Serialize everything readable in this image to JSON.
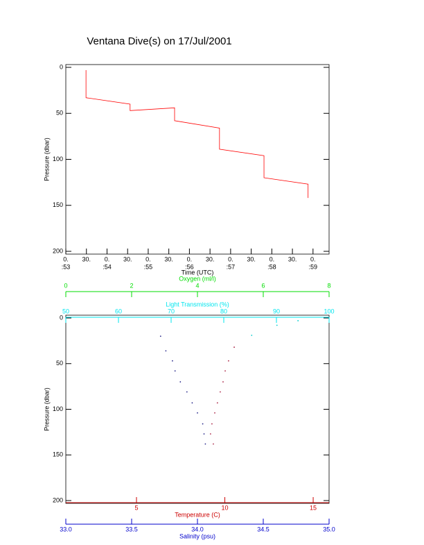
{
  "chart_data": [
    {
      "type": "line",
      "title": "Ventana Dive(s) on 17/Jul/2001",
      "x_label": "Time (UTC)",
      "y_label": "Pressure (dbar)",
      "xlim": [
        53,
        59.39
      ],
      "ylim": [
        0,
        200
      ],
      "y_inverted": true,
      "xticks": [
        {
          "value": 53,
          "label": [
            "0.",
            ":53"
          ]
        },
        {
          "value": 53.5,
          "label": "30."
        },
        {
          "value": 54,
          "label": [
            "0.",
            ":54"
          ]
        },
        {
          "value": 54.5,
          "label": "30."
        },
        {
          "value": 55,
          "label": [
            "0.",
            ":55"
          ]
        },
        {
          "value": 55.5,
          "label": "30."
        },
        {
          "value": 56,
          "label": [
            "0.",
            ":56"
          ]
        },
        {
          "value": 56.5,
          "label": "30."
        },
        {
          "value": 57,
          "label": [
            "0.",
            ":57"
          ]
        },
        {
          "value": 57.5,
          "label": "30."
        },
        {
          "value": 58,
          "label": [
            "0.",
            ":58"
          ]
        },
        {
          "value": 58.5,
          "label": "30."
        },
        {
          "value": 59,
          "label": [
            "0.",
            ":59"
          ]
        }
      ],
      "yticks": [
        0,
        50,
        100,
        150,
        200
      ],
      "series": [
        {
          "color": "#ff0000",
          "x": [
            53.49,
            53.49,
            54.56,
            54.56,
            55.64,
            55.64,
            56.73,
            56.73,
            57.81,
            57.81,
            58.88,
            58.88
          ],
          "values": [
            3,
            33,
            40,
            47,
            44,
            58,
            66,
            89,
            96,
            120,
            127,
            142
          ]
        }
      ]
    },
    {
      "type": "scatter",
      "y_label": "Pressure (dbar)",
      "ylim": [
        0,
        200
      ],
      "y_inverted": true,
      "yticks": [
        0,
        50,
        100,
        150,
        200
      ],
      "x_axes": [
        {
          "label": "Oxygen (ml/l)",
          "color": "#00dd00",
          "xlim": [
            0,
            8
          ],
          "xticks": [
            0,
            2,
            4,
            6,
            8
          ],
          "series": []
        },
        {
          "label": "Light Transmission (%)",
          "color": "#00e5ee",
          "xlim": [
            50,
            100
          ],
          "xticks": [
            50,
            60,
            70,
            80,
            90,
            100
          ],
          "series": [
            {
              "color": "#00cccc",
              "x": [
                85.3,
                90.1,
                94.1
              ],
              "values": [
                19,
                8,
                3
              ]
            }
          ]
        },
        {
          "label": "Temperature (C)",
          "color": "#cc0000",
          "xlim": [
            1,
            15.9
          ],
          "xticks": [
            5,
            10,
            15
          ],
          "series": [
            {
              "color": "#aa2244",
              "x": [
                10.53,
                10.21,
                10.02,
                9.9,
                9.74,
                9.58,
                9.43,
                9.27,
                9.19,
                9.35
              ],
              "values": [
                32,
                47,
                58,
                70,
                81,
                93,
                104,
                116,
                127,
                138
              ]
            }
          ]
        },
        {
          "label": "Salinity (psu)",
          "color": "#0000cc",
          "xlim": [
            33,
            35
          ],
          "xticks": [
            {
              "value": 33,
              "label": "33.0"
            },
            33.5,
            {
              "value": 34,
              "label": "34.0"
            },
            34.5,
            {
              "value": 35,
              "label": "35.0"
            }
          ],
          "series": [
            {
              "color": "#222288",
              "x": [
                33.72,
                33.76,
                33.81,
                33.83,
                33.87,
                33.92,
                33.96,
                34.0,
                34.04,
                34.05,
                34.06
              ],
              "values": [
                20,
                36,
                47,
                58,
                70,
                81,
                93,
                104,
                116,
                127,
                138
              ]
            }
          ]
        }
      ]
    }
  ]
}
